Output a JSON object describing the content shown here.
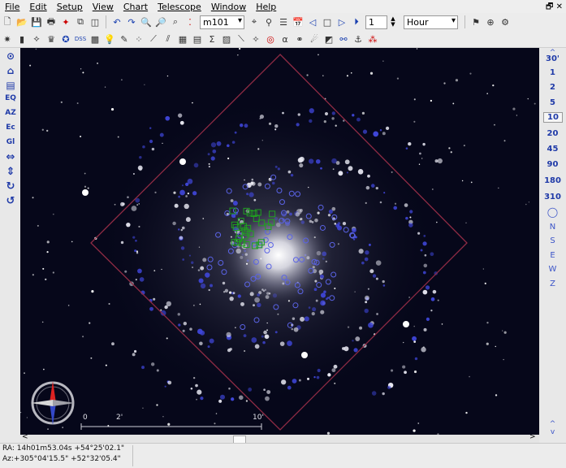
{
  "menu": {
    "items": [
      "File",
      "Edit",
      "Setup",
      "View",
      "Chart",
      "Telescope",
      "Window",
      "Help"
    ]
  },
  "toolbar": {
    "object_field": "m101",
    "step_value": "1",
    "step_unit": "Hour"
  },
  "left_tools": [
    "EQ",
    "AZ",
    "Ec",
    "Gl"
  ],
  "fov_buttons": [
    "30'",
    "1",
    "2",
    "5",
    "10",
    "20",
    "45",
    "90",
    "180",
    "310"
  ],
  "fov_selected": "10",
  "directions": [
    "N",
    "S",
    "E",
    "W",
    "Z"
  ],
  "scale_bar": {
    "labels": [
      "0",
      "2'",
      "10'"
    ]
  },
  "status": {
    "ra_dec": "RA: 14h01m53.04s +54°25'02.1\"",
    "az_alt": "Az:+305°04'15.5\" +52°32'05.4\""
  },
  "colors": {
    "sky_background": "#06071a",
    "fov_frame": "#8e2b44",
    "star_marker": "#5a63e6",
    "region_marker": "#20a020"
  }
}
